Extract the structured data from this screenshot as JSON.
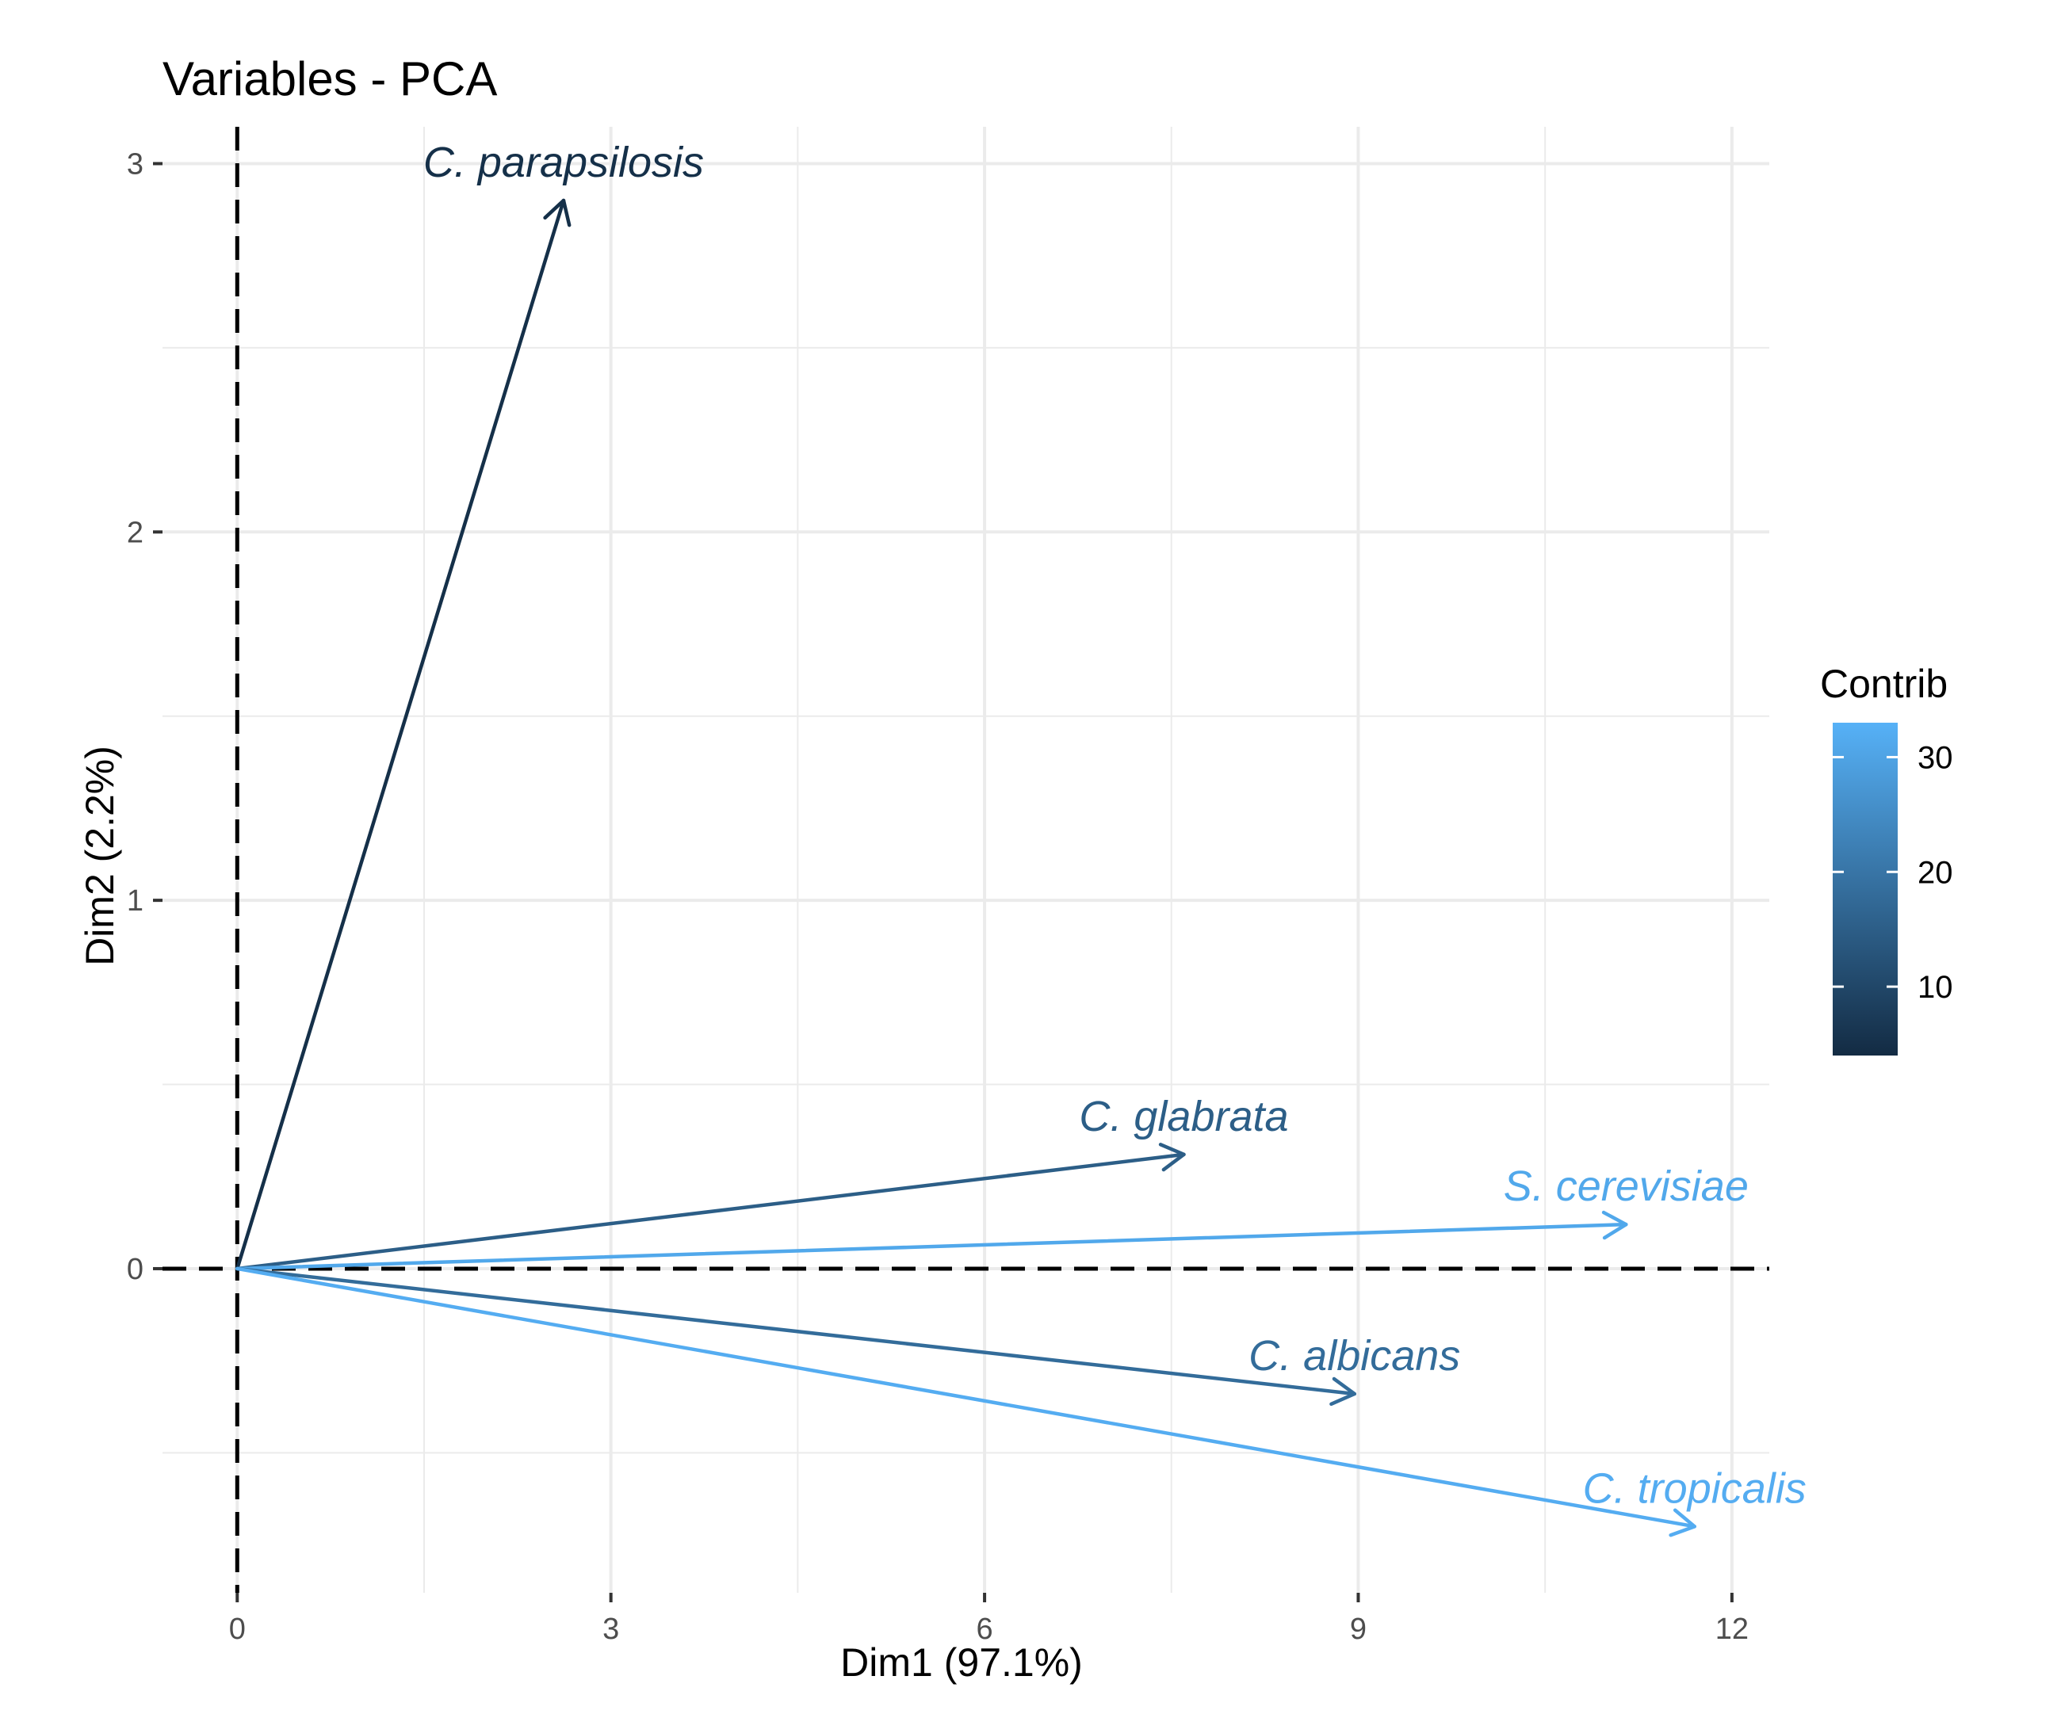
{
  "chart_data": {
    "type": "pca-variables-biplot",
    "title": "Variables - PCA",
    "xlabel": "Dim1 (97.1%)",
    "ylabel": "Dim2 (2.2%)",
    "xlim": [
      -0.6,
      12.3
    ],
    "ylim": [
      -0.88,
      3.1
    ],
    "x_ticks": [
      0,
      3,
      6,
      9,
      12
    ],
    "y_ticks": [
      0,
      1,
      2,
      3
    ],
    "grid": true,
    "reference_lines": {
      "x": 0,
      "y": 0,
      "style": "dashed"
    },
    "legend": {
      "title": "Contrib",
      "position": "right",
      "ticks": [
        30,
        20,
        10
      ],
      "min": 4,
      "max": 33,
      "low_color": "#132B43",
      "high_color": "#56B1F7"
    },
    "series": [
      {
        "name": "C. parapsilosis",
        "x": 2.62,
        "y": 2.9,
        "contrib": 5
      },
      {
        "name": "C. glabrata",
        "x": 7.6,
        "y": 0.31,
        "contrib": 15
      },
      {
        "name": "S. cerevisiae",
        "x": 11.15,
        "y": 0.12,
        "contrib": 31
      },
      {
        "name": "C. albicans",
        "x": 8.97,
        "y": -0.34,
        "contrib": 18
      },
      {
        "name": "C. tropicalis",
        "x": 11.7,
        "y": -0.7,
        "contrib": 32
      }
    ]
  }
}
